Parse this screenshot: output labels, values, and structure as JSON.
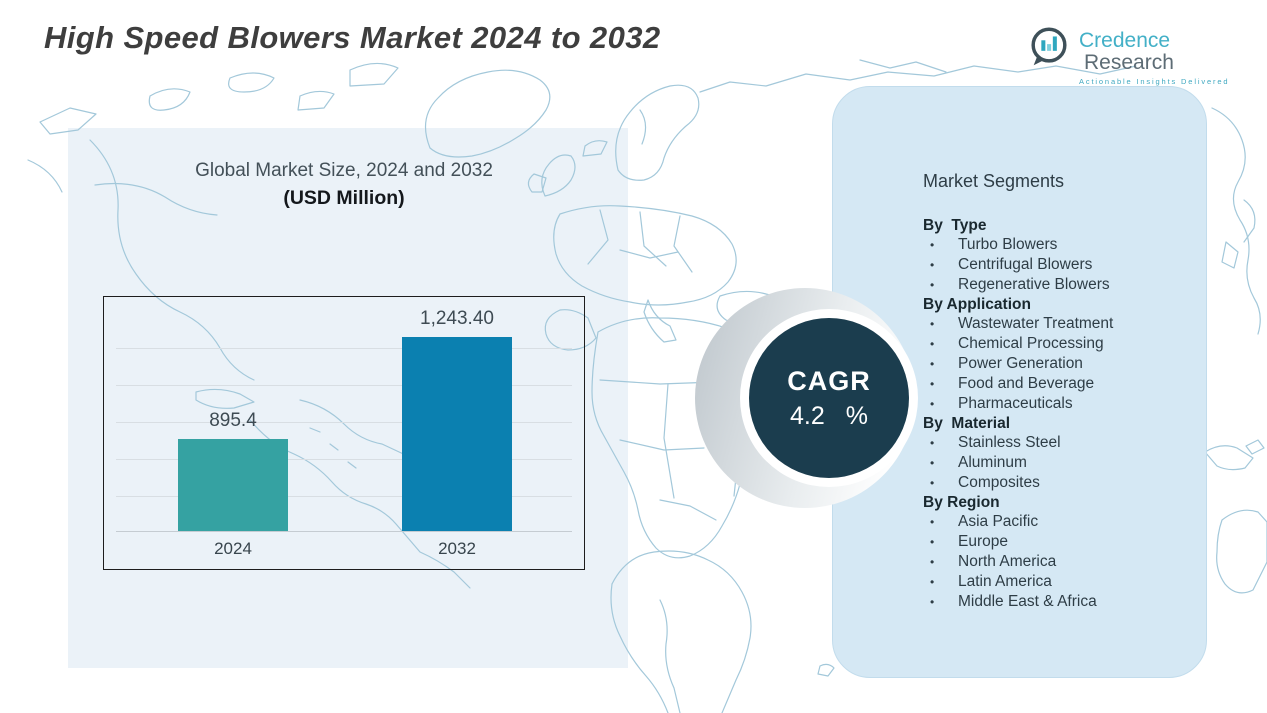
{
  "page": {
    "title": "High Speed Blowers Market 2024 to 2032"
  },
  "logo": {
    "brand_primary": "Credence",
    "brand_secondary": "Research",
    "tagline": "Actionable Insights Delivered",
    "icon": "bar-chart-speech-bubble-icon"
  },
  "chart": {
    "title": "Global Market Size, 2024 and 2032",
    "subtitle": "(USD Million)"
  },
  "chart_data": {
    "type": "bar",
    "title": "Global Market Size, 2024 and 2032 (USD Million)",
    "categories": [
      "2024",
      "2032"
    ],
    "values": [
      895.4,
      1243.4
    ],
    "value_labels": [
      "895.4",
      "1,243.40"
    ],
    "bar_colors": [
      "#35a2a2",
      "#0b80b0"
    ],
    "ylim": [
      580,
      1380
    ],
    "grid": true,
    "legend": "none",
    "xlabel": "",
    "ylabel": ""
  },
  "cagr": {
    "label": "CAGR",
    "value": "4.2",
    "unit": "%",
    "badge_color": "#1b3d4e"
  },
  "segments": {
    "title": "Market Segments",
    "groups": [
      {
        "heading": "By  Type",
        "items": [
          "Turbo Blowers",
          "Centrifugal Blowers",
          "Regenerative Blowers"
        ]
      },
      {
        "heading": "By Application",
        "items": [
          "Wastewater Treatment",
          "Chemical Processing",
          "Power Generation",
          "Food and Beverage",
          "Pharmaceuticals"
        ]
      },
      {
        "heading": "By  Material",
        "items": [
          "Stainless Steel",
          "Aluminum",
          "Composites"
        ]
      },
      {
        "heading": "By Region",
        "items": [
          "Asia Pacific",
          "Europe",
          "North America",
          "Latin America",
          "Middle East & Africa"
        ]
      }
    ]
  },
  "colors": {
    "accent_teal": "#35a2a2",
    "accent_blue": "#0b80b0",
    "badge_dark": "#1b3d4e",
    "panel_blue": "#d5e8f4",
    "backdrop_blue": "#ebf2f8",
    "map_line": "#a3c8da"
  }
}
